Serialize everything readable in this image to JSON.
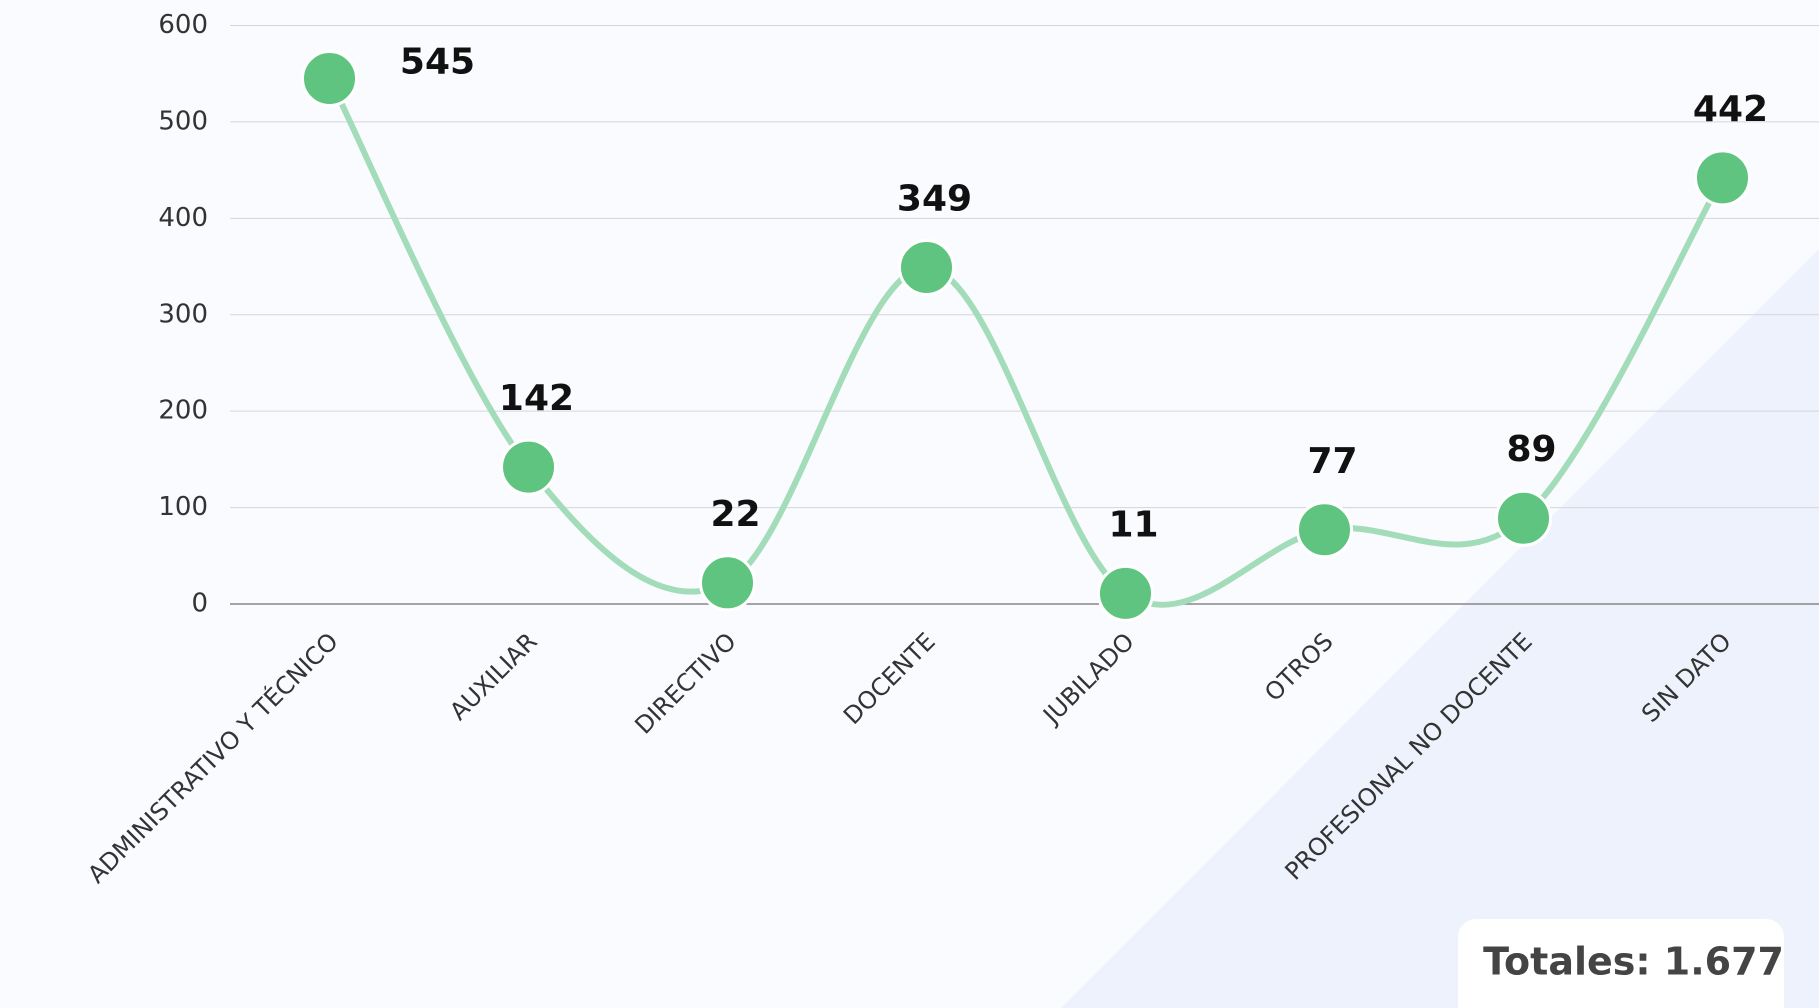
{
  "chart_data": {
    "type": "line",
    "categories": [
      "ADMINISTRATIVO Y TÉCNICO",
      "AUXILIAR",
      "DIRECTIVO",
      "DOCENTE",
      "JUBILADO",
      "OTROS",
      "PROFESIONAL NO DOCENTE",
      "SIN DATO"
    ],
    "values": [
      545,
      142,
      22,
      349,
      11,
      77,
      89,
      442
    ],
    "color": "#5ec47f",
    "line_color": "#a3dcb9",
    "ylim": [
      0,
      600
    ],
    "yticks": [
      0,
      100,
      200,
      300,
      400,
      500,
      600
    ],
    "grid": true,
    "annotation": "Totales: 1.677"
  }
}
